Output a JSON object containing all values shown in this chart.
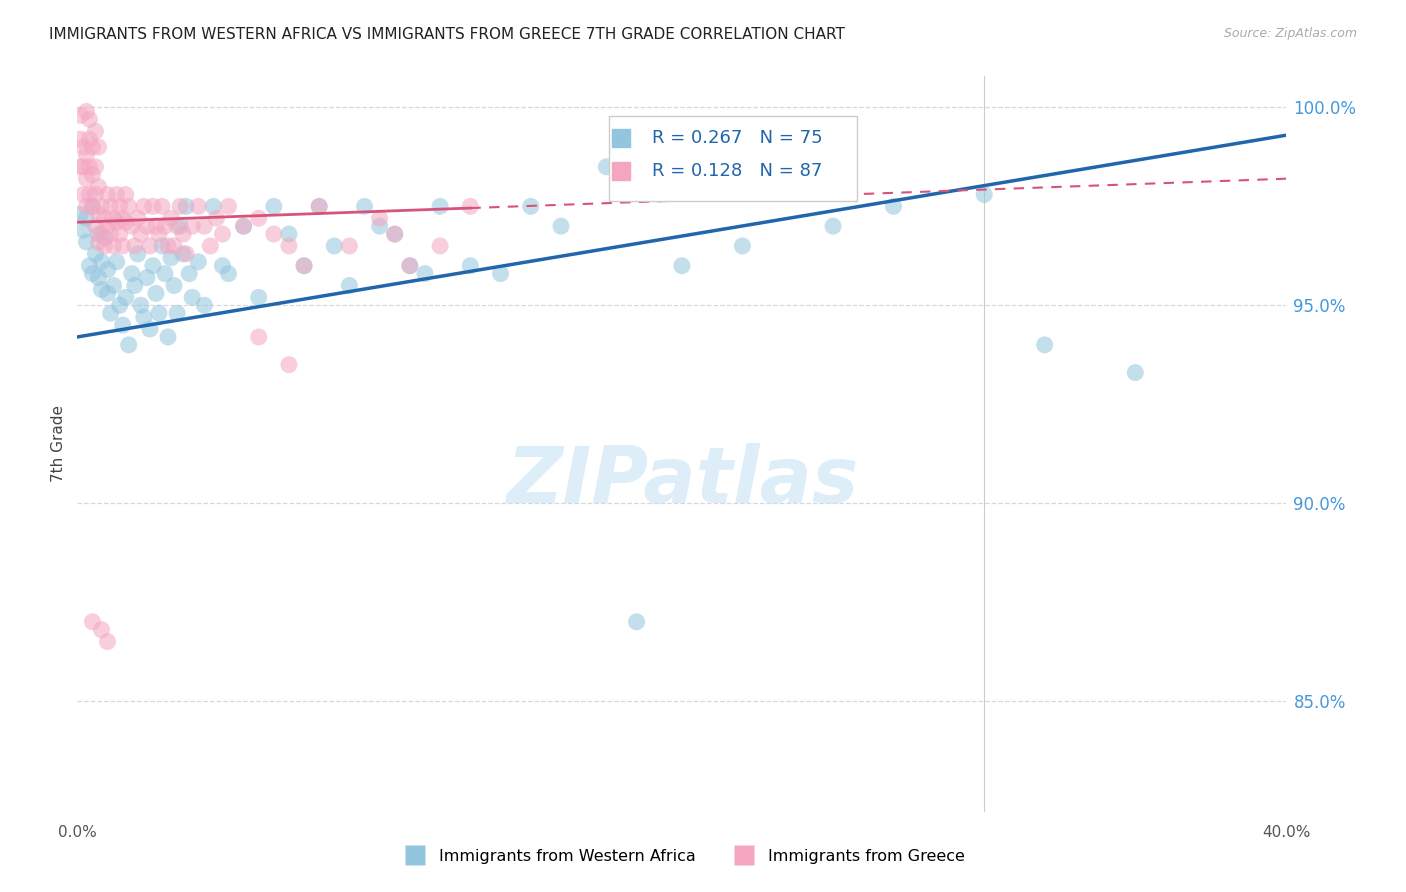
{
  "title": "IMMIGRANTS FROM WESTERN AFRICA VS IMMIGRANTS FROM GREECE 7TH GRADE CORRELATION CHART",
  "source": "Source: ZipAtlas.com",
  "ylabel": "7th Grade",
  "blue_R": 0.267,
  "blue_N": 75,
  "pink_R": 0.128,
  "pink_N": 87,
  "blue_color": "#92c5de",
  "pink_color": "#f4a6c0",
  "blue_line_color": "#2166ac",
  "pink_line_color": "#d6537a",
  "legend_label_blue": "Immigrants from Western Africa",
  "legend_label_pink": "Immigrants from Greece",
  "xmin": 0.0,
  "xmax": 0.4,
  "ymin": 0.822,
  "ymax": 1.008,
  "yticks": [
    0.85,
    0.9,
    0.95,
    1.0
  ],
  "ytick_labels": [
    "85.0%",
    "90.0%",
    "95.0%",
    "100.0%"
  ],
  "xticks": [
    0.0,
    0.05,
    0.1,
    0.15,
    0.2,
    0.25,
    0.3,
    0.35,
    0.4
  ],
  "xtick_labels": [
    "0.0%",
    "",
    "",
    "",
    "",
    "",
    "",
    "",
    "40.0%"
  ],
  "blue_trend_x0": 0.0,
  "blue_trend_y0": 0.942,
  "blue_trend_x1": 0.4,
  "blue_trend_y1": 0.993,
  "pink_trend_x0": 0.0,
  "pink_trend_y0": 0.971,
  "pink_trend_x1": 0.4,
  "pink_trend_y1": 0.982,
  "blue_scatter_x": [
    0.001,
    0.002,
    0.003,
    0.003,
    0.004,
    0.005,
    0.005,
    0.006,
    0.007,
    0.007,
    0.008,
    0.008,
    0.009,
    0.01,
    0.01,
    0.011,
    0.012,
    0.013,
    0.014,
    0.015,
    0.016,
    0.017,
    0.018,
    0.019,
    0.02,
    0.021,
    0.022,
    0.023,
    0.024,
    0.025,
    0.026,
    0.027,
    0.028,
    0.029,
    0.03,
    0.031,
    0.032,
    0.033,
    0.034,
    0.035,
    0.036,
    0.037,
    0.038,
    0.04,
    0.042,
    0.045,
    0.048,
    0.05,
    0.055,
    0.06,
    0.065,
    0.07,
    0.075,
    0.08,
    0.085,
    0.09,
    0.095,
    0.1,
    0.105,
    0.11,
    0.115,
    0.12,
    0.13,
    0.14,
    0.15,
    0.16,
    0.175,
    0.185,
    0.2,
    0.22,
    0.25,
    0.27,
    0.3,
    0.32,
    0.35
  ],
  "blue_scatter_y": [
    0.973,
    0.969,
    0.966,
    0.972,
    0.96,
    0.975,
    0.958,
    0.963,
    0.957,
    0.968,
    0.954,
    0.961,
    0.967,
    0.953,
    0.959,
    0.948,
    0.955,
    0.961,
    0.95,
    0.945,
    0.952,
    0.94,
    0.958,
    0.955,
    0.963,
    0.95,
    0.947,
    0.957,
    0.944,
    0.96,
    0.953,
    0.948,
    0.965,
    0.958,
    0.942,
    0.962,
    0.955,
    0.948,
    0.97,
    0.963,
    0.975,
    0.958,
    0.952,
    0.961,
    0.95,
    0.975,
    0.96,
    0.958,
    0.97,
    0.952,
    0.975,
    0.968,
    0.96,
    0.975,
    0.965,
    0.955,
    0.975,
    0.97,
    0.968,
    0.96,
    0.958,
    0.975,
    0.96,
    0.958,
    0.975,
    0.97,
    0.985,
    0.87,
    0.96,
    0.965,
    0.97,
    0.975,
    0.978,
    0.94,
    0.933
  ],
  "pink_scatter_x": [
    0.001,
    0.001,
    0.001,
    0.002,
    0.002,
    0.002,
    0.003,
    0.003,
    0.003,
    0.004,
    0.004,
    0.004,
    0.005,
    0.005,
    0.005,
    0.006,
    0.006,
    0.006,
    0.007,
    0.007,
    0.007,
    0.008,
    0.008,
    0.009,
    0.009,
    0.01,
    0.01,
    0.011,
    0.011,
    0.012,
    0.012,
    0.013,
    0.013,
    0.014,
    0.014,
    0.015,
    0.015,
    0.016,
    0.016,
    0.017,
    0.018,
    0.019,
    0.02,
    0.021,
    0.022,
    0.023,
    0.024,
    0.025,
    0.026,
    0.027,
    0.028,
    0.029,
    0.03,
    0.031,
    0.032,
    0.033,
    0.034,
    0.035,
    0.036,
    0.038,
    0.04,
    0.042,
    0.044,
    0.046,
    0.048,
    0.05,
    0.055,
    0.06,
    0.065,
    0.07,
    0.075,
    0.08,
    0.09,
    0.1,
    0.105,
    0.11,
    0.12,
    0.13,
    0.06,
    0.07,
    0.005,
    0.008,
    0.01,
    0.003,
    0.004,
    0.006,
    0.007
  ],
  "pink_scatter_y": [
    0.998,
    0.992,
    0.985,
    0.99,
    0.985,
    0.978,
    0.988,
    0.982,
    0.975,
    0.992,
    0.985,
    0.978,
    0.99,
    0.983,
    0.975,
    0.985,
    0.978,
    0.97,
    0.98,
    0.973,
    0.966,
    0.975,
    0.968,
    0.972,
    0.965,
    0.978,
    0.97,
    0.975,
    0.968,
    0.972,
    0.965,
    0.978,
    0.971,
    0.975,
    0.968,
    0.972,
    0.965,
    0.978,
    0.971,
    0.975,
    0.97,
    0.965,
    0.972,
    0.968,
    0.975,
    0.97,
    0.965,
    0.975,
    0.97,
    0.968,
    0.975,
    0.97,
    0.965,
    0.972,
    0.965,
    0.97,
    0.975,
    0.968,
    0.963,
    0.97,
    0.975,
    0.97,
    0.965,
    0.972,
    0.968,
    0.975,
    0.97,
    0.972,
    0.968,
    0.965,
    0.96,
    0.975,
    0.965,
    0.972,
    0.968,
    0.96,
    0.965,
    0.975,
    0.942,
    0.935,
    0.87,
    0.868,
    0.865,
    0.999,
    0.997,
    0.994,
    0.99
  ]
}
